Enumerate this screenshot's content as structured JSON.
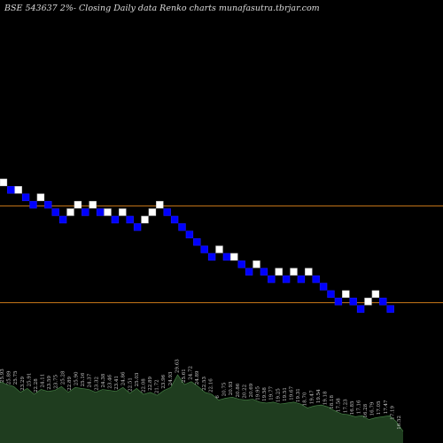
{
  "chart_data": {
    "type": "renko",
    "title": "BSE 543637 2%- Closing Daily data Renko charts munafasutra.tbrjar.com",
    "colors": {
      "background": "#000000",
      "up_brick": "#ffffff",
      "down_brick": "#0000ff",
      "brick_border": "#1a1aff",
      "reference_line": "#cc7a1a",
      "volume": "#1f3d1f",
      "volume_line": "#4a8a4a"
    },
    "bricks": [
      {
        "dir": "up",
        "level": 44
      },
      {
        "dir": "down",
        "level": 43
      },
      {
        "dir": "up",
        "level": 43
      },
      {
        "dir": "down",
        "level": 42
      },
      {
        "dir": "down",
        "level": 41
      },
      {
        "dir": "up",
        "level": 42
      },
      {
        "dir": "down",
        "level": 41
      },
      {
        "dir": "down",
        "level": 40
      },
      {
        "dir": "down",
        "level": 39
      },
      {
        "dir": "up",
        "level": 40
      },
      {
        "dir": "up",
        "level": 41
      },
      {
        "dir": "down",
        "level": 40
      },
      {
        "dir": "up",
        "level": 41
      },
      {
        "dir": "down",
        "level": 40
      },
      {
        "dir": "up",
        "level": 40
      },
      {
        "dir": "down",
        "level": 39
      },
      {
        "dir": "up",
        "level": 40
      },
      {
        "dir": "down",
        "level": 39
      },
      {
        "dir": "down",
        "level": 38
      },
      {
        "dir": "up",
        "level": 39
      },
      {
        "dir": "up",
        "level": 40
      },
      {
        "dir": "up",
        "level": 41
      },
      {
        "dir": "down",
        "level": 40
      },
      {
        "dir": "down",
        "level": 39
      },
      {
        "dir": "down",
        "level": 38
      },
      {
        "dir": "down",
        "level": 37
      },
      {
        "dir": "down",
        "level": 36
      },
      {
        "dir": "down",
        "level": 35
      },
      {
        "dir": "down",
        "level": 34
      },
      {
        "dir": "up",
        "level": 35
      },
      {
        "dir": "down",
        "level": 34
      },
      {
        "dir": "up",
        "level": 34
      },
      {
        "dir": "down",
        "level": 33
      },
      {
        "dir": "down",
        "level": 32
      },
      {
        "dir": "up",
        "level": 33
      },
      {
        "dir": "down",
        "level": 32
      },
      {
        "dir": "down",
        "level": 31
      },
      {
        "dir": "up",
        "level": 32
      },
      {
        "dir": "down",
        "level": 31
      },
      {
        "dir": "up",
        "level": 32
      },
      {
        "dir": "down",
        "level": 31
      },
      {
        "dir": "up",
        "level": 32
      },
      {
        "dir": "down",
        "level": 31
      },
      {
        "dir": "down",
        "level": 30
      },
      {
        "dir": "down",
        "level": 29
      },
      {
        "dir": "down",
        "level": 28
      },
      {
        "dir": "up",
        "level": 29
      },
      {
        "dir": "down",
        "level": 28
      },
      {
        "dir": "down",
        "level": 27
      },
      {
        "dir": "up",
        "level": 28
      },
      {
        "dir": "up",
        "level": 29
      },
      {
        "dir": "down",
        "level": 28
      },
      {
        "dir": "down",
        "level": 27
      }
    ],
    "reference_lines": [
      {
        "level": 41
      },
      {
        "level": 28
      }
    ],
    "volume_labels": [
      "25.93",
      "25.89",
      "25.75",
      "23.29",
      "25.91",
      "22.28",
      "24.11",
      "23.59",
      "23.75",
      "25.28",
      "22.89",
      "25.90",
      "25.16",
      "24.37",
      "23.32",
      "24.38",
      "23.46",
      "23.41",
      "24.86",
      "22.51",
      "25.03",
      "22.08",
      "22.89",
      "21.72",
      "23.96",
      "24.93",
      "29.63",
      "25.61",
      "24.72",
      "24.89",
      "22.53",
      "22.16",
      "6",
      "20.75",
      "20.93",
      "20.86",
      "20.22",
      "20.69",
      "19.95",
      "19.58",
      "19.77",
      "19.25",
      "19.51",
      "19.67",
      "19.31",
      "18.70",
      "19.47",
      "19.54",
      "19.18",
      "18.18",
      "17.58",
      "17.23",
      "16.85",
      "17.16",
      "16.28",
      "16.79",
      "17.05",
      "17.47",
      "17.19",
      "16.52"
    ],
    "volumes": [
      0.63,
      0.6,
      0.58,
      0.52,
      0.56,
      0.5,
      0.55,
      0.53,
      0.54,
      0.58,
      0.52,
      0.57,
      0.56,
      0.55,
      0.52,
      0.55,
      0.54,
      0.53,
      0.57,
      0.51,
      0.56,
      0.5,
      0.52,
      0.49,
      0.54,
      0.57,
      0.7,
      0.6,
      0.63,
      0.58,
      0.52,
      0.5,
      0.44,
      0.46,
      0.47,
      0.45,
      0.44,
      0.45,
      0.42,
      0.41,
      0.42,
      0.4,
      0.41,
      0.42,
      0.4,
      0.36,
      0.38,
      0.39,
      0.37,
      0.33,
      0.3,
      0.29,
      0.27,
      0.28,
      0.24,
      0.26,
      0.27,
      0.28,
      0.22,
      0.12
    ]
  }
}
